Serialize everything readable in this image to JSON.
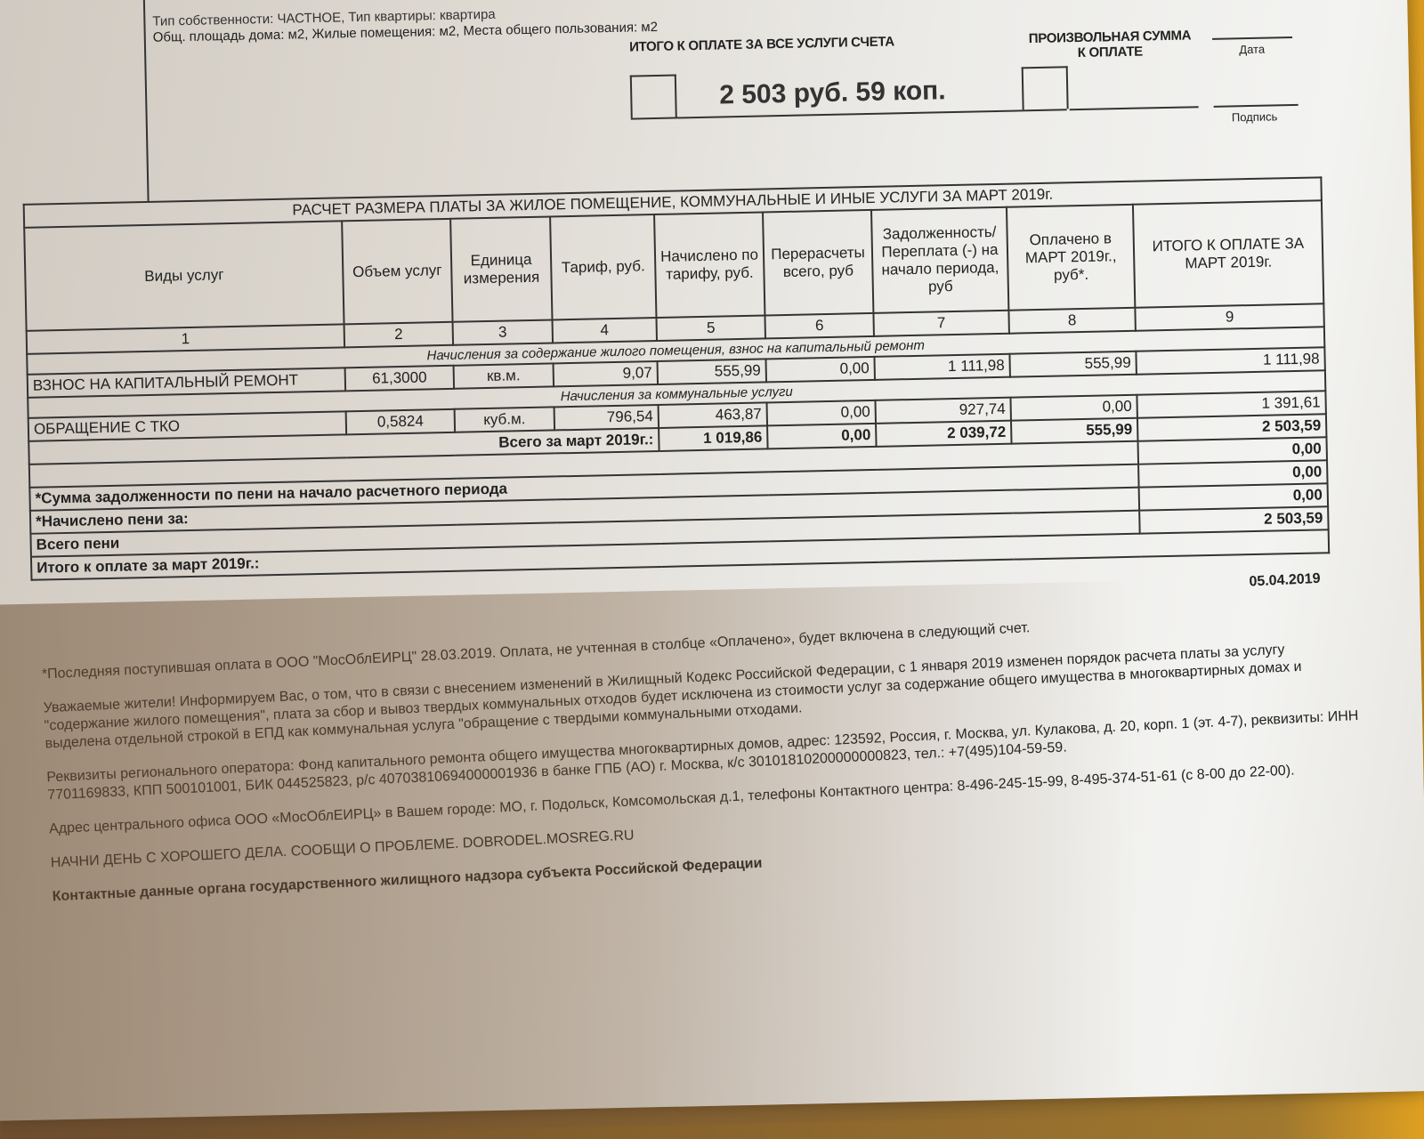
{
  "header": {
    "info_line1": "Тип собственности: ЧАСТНОЕ, Тип квартиры: квартира",
    "info_line2": "Общ. площадь дома: м2, Жилые помещения: м2, Места общего пользования: м2",
    "total_label": "ИТОГО К ОПЛАТЕ ЗА ВСЕ УСЛУГИ СЧЕТА",
    "total_amount": "2 503 руб. 59 коп.",
    "arbitrary_label": "ПРОИЗВОЛЬНАЯ СУММА К ОПЛАТЕ",
    "date_label": "Дата",
    "signature_label": "Подпись"
  },
  "table": {
    "title": "РАСЧЕТ РАЗМЕРА ПЛАТЫ ЗА ЖИЛОЕ ПОМЕЩЕНИЕ, КОММУНАЛЬНЫЕ И ИНЫЕ УСЛУГИ ЗА МАРТ 2019г.",
    "columns": [
      "Виды услуг",
      "Объем услуг",
      "Единица измерения",
      "Тариф, руб.",
      "Начислено по тарифу, руб.",
      "Перерасчеты всего, руб",
      "Задолженность/ Переплата (-) на начало периода, руб",
      "Оплачено в МАРТ 2019г., руб*.",
      "ИТОГО К ОПЛАТЕ ЗА МАРТ 2019г."
    ],
    "column_numbers": [
      "1",
      "2",
      "3",
      "4",
      "5",
      "6",
      "7",
      "8",
      "9"
    ],
    "section1": "Начисления за содержание жилого помещения, взнос на капитальный ремонт",
    "row1": [
      "ВЗНОС НА КАПИТАЛЬНЫЙ РЕМОНТ",
      "61,3000",
      "кв.м.",
      "9,07",
      "555,99",
      "0,00",
      "1 111,98",
      "555,99",
      "1 111,98"
    ],
    "section2": "Начисления за коммунальные услуги",
    "row2": [
      "ОБРАЩЕНИЕ С ТКО",
      "0,5824",
      "куб.м.",
      "796,54",
      "463,87",
      "0,00",
      "927,74",
      "0,00",
      "1 391,61"
    ],
    "total_row": [
      "Всего за март 2019г.:",
      "1 019,86",
      "0,00",
      "2 039,72",
      "555,99",
      "2 503,59"
    ],
    "extra_rows": [
      {
        "label": "",
        "value": "0,00"
      },
      {
        "label": "*Сумма задолженности по пени на начало расчетного периода",
        "value": "0,00"
      },
      {
        "label": "*Начислено пени за:",
        "value": "0,00"
      },
      {
        "label": "Всего пени",
        "value": "2 503,59"
      },
      {
        "label": "Итого к оплате за март 2019г.:",
        "value": ""
      }
    ]
  },
  "footer": {
    "date": "05.04.2019",
    "p1": "*Последняя поступившая оплата в ООО \"МосОблЕИРЦ\" 28.03.2019. Оплата, не учтенная в столбце «Оплачено», будет включена в следующий счет.",
    "p2": "Уважаемые жители! Информируем Вас, о том, что в связи с внесением изменений в Жилищный Кодекс Российской Федерации, с 1 января 2019 изменен порядок расчета платы за услугу \"содержание жилого помещения\", плата за сбор и вывоз твердых коммунальных отходов будет исключена из стоимости услуг за содержание общего имущества в многоквартирных домах и выделена отдельной строкой в ЕПД как коммунальная услуга \"обращение с твердыми коммунальными отходами.",
    "p3": "Реквизиты регионального оператора: Фонд капитального ремонта общего имущества многоквартирных домов, адрес: 123592, Россия, г. Москва, ул. Кулакова, д. 20, корп. 1 (эт. 4-7), реквизиты: ИНН 7701169833, КПП 500101001, БИК 044525823, р/с 40703810694000001936 в банке ГПБ (АО) г. Москва, к/с 30101810200000000823, тел.: +7(495)104-59-59.",
    "p4": "Адрес центрального офиса ООО «МосОблЕИРЦ» в Вашем городе: МО, г. Подольск, Комсомольская д.1, телефоны Контактного центра: 8-496-245-15-99, 8-495-374-51-61 (с 8-00 до 22-00).",
    "p5": "НАЧНИ ДЕНЬ С ХОРОШЕГО ДЕЛА. СООБЩИ О ПРОБЛЕМЕ. DOBRODEL.MOSREG.RU",
    "p6": "Контактные данные органа государственного жилищного надзора субъекта Российской Федерации"
  }
}
